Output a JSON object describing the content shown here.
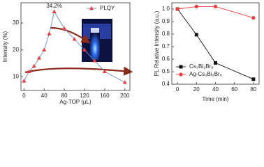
{
  "chart_data": [
    {
      "type": "line",
      "xlabel": "Ag-TOP (μL)",
      "ylabel": "Intensity (%)",
      "xlim": [
        -6,
        210
      ],
      "xticks": [
        0,
        40,
        80,
        120,
        160,
        200
      ],
      "ylim": [
        5,
        37.5
      ],
      "yticks": [
        10,
        20,
        30
      ],
      "legend": "upper right",
      "series": [
        {
          "name": "PLQY",
          "color": "#ee3b3b",
          "line_color": "#6a8fd8",
          "marker": "triangle",
          "x": [
            0,
            10,
            20,
            30,
            40,
            50,
            60,
            80,
            100,
            120,
            140,
            160,
            200
          ],
          "values": [
            8.5,
            12,
            14,
            17,
            20,
            26,
            34.2,
            28,
            24,
            20,
            16,
            12,
            8
          ]
        }
      ],
      "annotations": [
        {
          "text": "34.2%",
          "x": 60,
          "y": 34.2
        }
      ]
    },
    {
      "type": "line",
      "xlabel": "Time (min)",
      "ylabel": "PL Relative Intensity (a.u.)",
      "xlim": [
        -6,
        86
      ],
      "xticks": [
        0,
        20,
        40,
        60,
        80
      ],
      "ylim": [
        0.4,
        1.05
      ],
      "yticks": [
        0.4,
        0.5,
        0.6,
        0.7,
        0.8,
        0.9,
        {
          "value": 1.0,
          "label": "1.0"
        }
      ],
      "legend": "lower left",
      "series": [
        {
          "name": "Cs₃Bi₂Br₉",
          "color": "#111111",
          "line_color": "#111111",
          "marker": "square",
          "x": [
            0,
            20,
            40,
            80
          ],
          "values": [
            1.0,
            0.795,
            0.57,
            0.44
          ]
        },
        {
          "name": "Ag-Cs₃Bi₂Br₉",
          "color": "#ee3b3b",
          "line_color": "#ee3b3b",
          "marker": "circle",
          "x": [
            0,
            20,
            40,
            80
          ],
          "values": [
            1.0,
            1.02,
            1.02,
            0.93
          ]
        }
      ]
    }
  ]
}
